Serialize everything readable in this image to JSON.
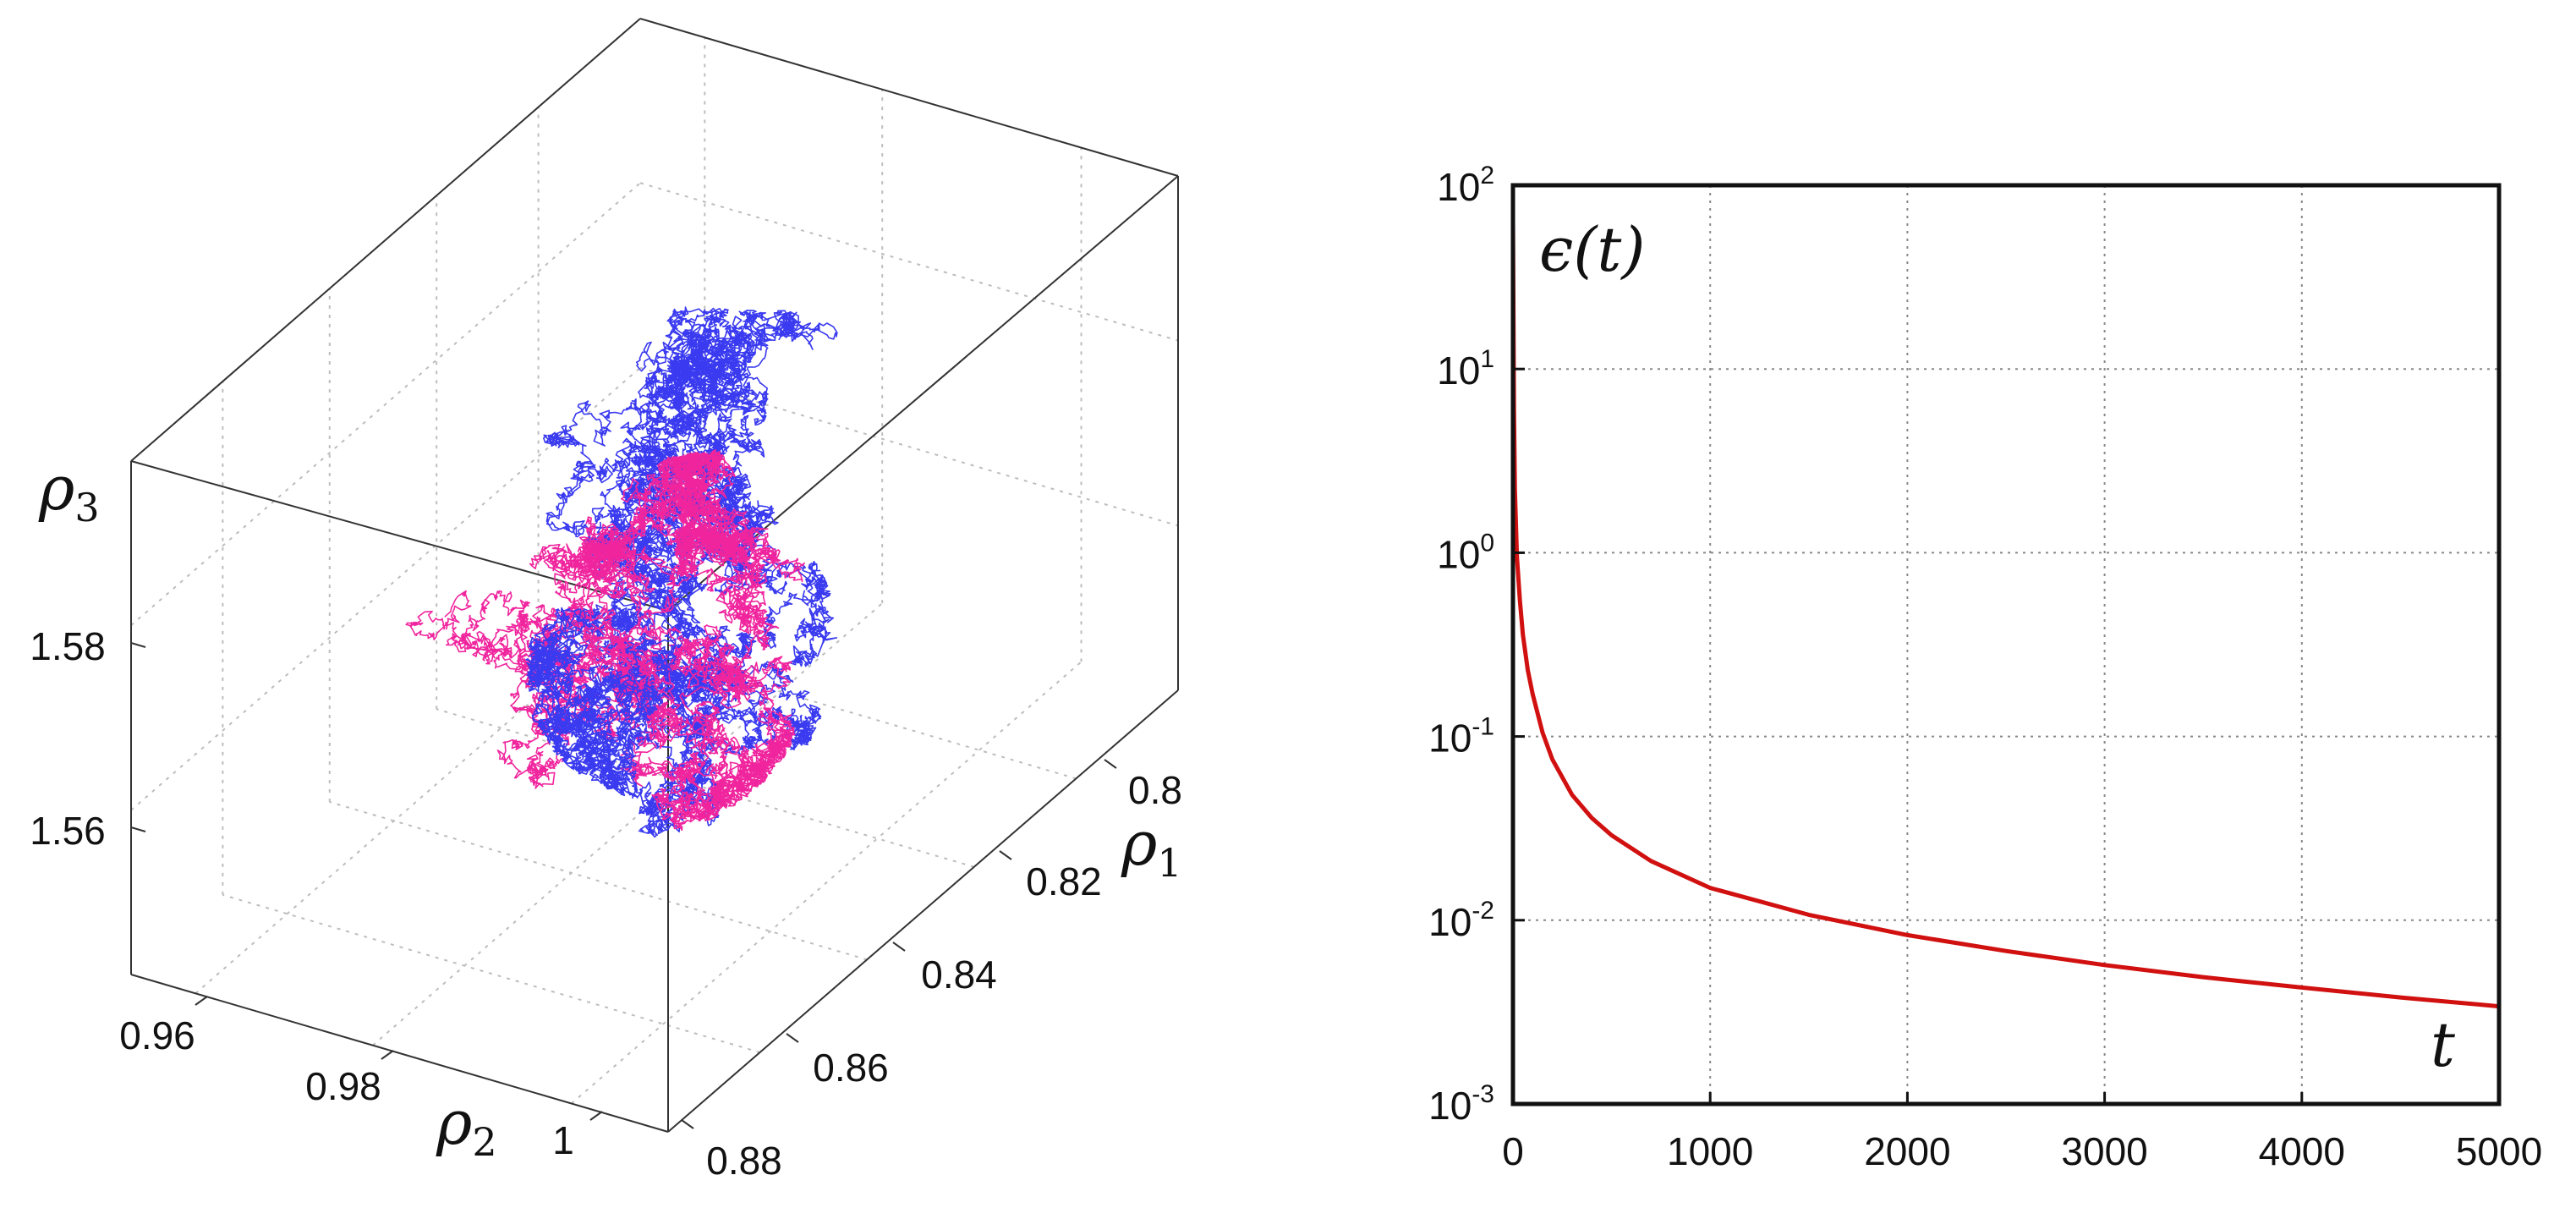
{
  "chart_data": [
    {
      "type": "scatter3d",
      "title": "",
      "axes": {
        "x": {
          "label": "ρ",
          "label_sub": "2",
          "ticks": [
            "0.96",
            "0.98",
            "1"
          ]
        },
        "y": {
          "label": "ρ",
          "label_sub": "1",
          "ticks": [
            "0.8",
            "0.82",
            "0.84",
            "0.86",
            "0.88"
          ]
        },
        "z": {
          "label": "ρ",
          "label_sub": "3",
          "ticks": [
            "1.56",
            "1.58"
          ]
        }
      },
      "series": [
        {
          "name": "trajectory-blue",
          "color": "#3a3af0"
        },
        {
          "name": "trajectory-pink",
          "color": "#f0259e"
        }
      ]
    },
    {
      "type": "line",
      "title": "",
      "xlabel": "t",
      "ylabel": "ϵ(t)",
      "yscale": "log",
      "xlim": [
        0,
        5000
      ],
      "ylim": [
        0.001,
        100
      ],
      "grid": true,
      "xticks": [
        "0",
        "1000",
        "2000",
        "3000",
        "4000",
        "5000"
      ],
      "yticks": [
        {
          "base": "10",
          "exp": "2"
        },
        {
          "base": "10",
          "exp": "1"
        },
        {
          "base": "10",
          "exp": "0"
        },
        {
          "base": "10",
          "exp": "-1"
        },
        {
          "base": "10",
          "exp": "-2"
        },
        {
          "base": "10",
          "exp": "-3"
        }
      ],
      "series": [
        {
          "name": "epsilon",
          "color": "#d11010",
          "x": [
            0,
            5,
            10,
            20,
            35,
            50,
            75,
            100,
            150,
            200,
            300,
            400,
            500,
            700,
            1000,
            1500,
            2000,
            2500,
            3000,
            3500,
            4000,
            4500,
            5000
          ],
          "y": [
            65,
            6,
            2.2,
            0.95,
            0.55,
            0.36,
            0.23,
            0.17,
            0.105,
            0.075,
            0.048,
            0.036,
            0.029,
            0.021,
            0.015,
            0.0107,
            0.0083,
            0.0068,
            0.0057,
            0.0049,
            0.0043,
            0.0038,
            0.0034
          ]
        }
      ]
    }
  ]
}
